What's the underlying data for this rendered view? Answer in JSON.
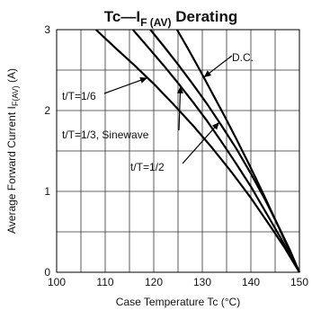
{
  "chart_data": {
    "type": "line",
    "title": {
      "lead": "Tc—I",
      "sub": "F (AV)",
      "trail": " Derating"
    },
    "xlabel": "Case Temperature  Tc (°C)",
    "ylabel": {
      "main": "Average Forward Current  I",
      "sub": "F(AV)",
      "unit": " (A)"
    },
    "xlim": [
      100,
      150
    ],
    "ylim": [
      0,
      3
    ],
    "xticks": [
      100,
      110,
      120,
      130,
      140,
      150
    ],
    "yticks": [
      0,
      1,
      2,
      3
    ],
    "xgrid_step": 5,
    "ygrid_step": 0.5,
    "grid": true,
    "series": [
      {
        "name": "t/T=1/6",
        "x": [
          108.1,
          112,
          116,
          120,
          124,
          128,
          132,
          136,
          140,
          144,
          147,
          150
        ],
        "y": [
          3.0,
          2.78,
          2.56,
          2.33,
          2.08,
          1.82,
          1.54,
          1.24,
          0.92,
          0.57,
          0.3,
          0.0
        ]
      },
      {
        "name": "t/T=1/3, Sinewave",
        "x": [
          115.7,
          119,
          122,
          125,
          128,
          131,
          134,
          137,
          140,
          143,
          146,
          150
        ],
        "y": [
          3.0,
          2.77,
          2.56,
          2.34,
          2.11,
          1.87,
          1.61,
          1.34,
          1.06,
          0.75,
          0.44,
          0.0
        ]
      },
      {
        "name": "t/T=1/2",
        "x": [
          119.3,
          122,
          125,
          128,
          131,
          134,
          137,
          140,
          143,
          146,
          148,
          150
        ],
        "y": [
          3.0,
          2.8,
          2.57,
          2.33,
          2.08,
          1.81,
          1.53,
          1.22,
          0.89,
          0.53,
          0.28,
          0.0
        ]
      },
      {
        "name": "D.C.",
        "x": [
          124.8,
          127,
          129.5,
          132,
          134.5,
          137,
          139.5,
          142,
          144.5,
          147,
          150
        ],
        "y": [
          3.0,
          2.77,
          2.5,
          2.22,
          1.94,
          1.65,
          1.35,
          1.04,
          0.72,
          0.39,
          0.0
        ]
      }
    ],
    "annotations": [
      {
        "text": "D.C.",
        "series": "D.C."
      },
      {
        "text": "t/T=1/6",
        "series": "t/T=1/6"
      },
      {
        "text": "t/T=1/3, Sinewave",
        "series": "t/T=1/3, Sinewave"
      },
      {
        "text": "t/T=1/2",
        "series": "t/T=1/2"
      }
    ],
    "colors": {
      "line": "#000000",
      "grid": "#333333",
      "text": "#111111"
    }
  }
}
